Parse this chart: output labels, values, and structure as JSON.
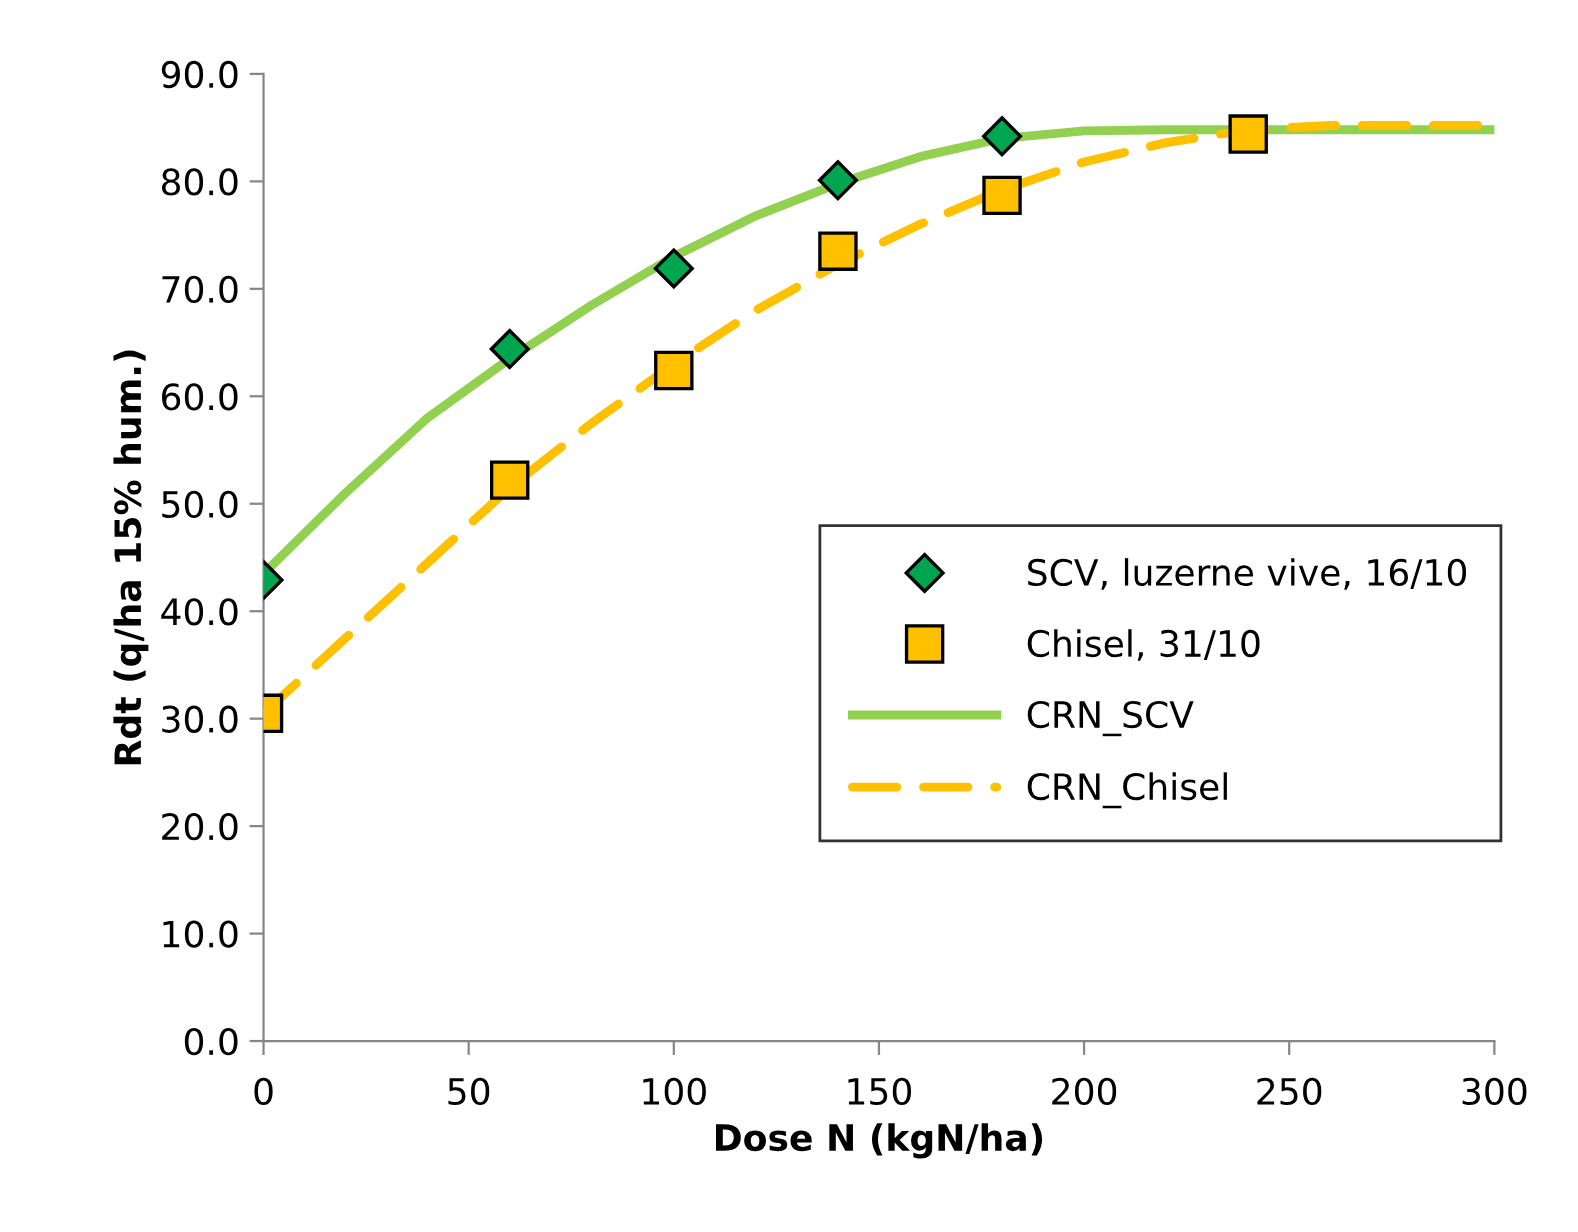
{
  "chart_data": {
    "type": "line",
    "xlabel": "Dose N (kgN/ha)",
    "ylabel": "Rdt (q/ha 15% hum.)",
    "xlim": [
      0,
      300
    ],
    "xticks": [
      0,
      50,
      100,
      150,
      200,
      250,
      300
    ],
    "ylim": [
      0,
      90
    ],
    "yticks": [
      {
        "value": 0,
        "label": "0.0"
      },
      {
        "value": 10,
        "label": "10.0"
      },
      {
        "value": 20,
        "label": "20.0"
      },
      {
        "value": 30,
        "label": "30.0"
      },
      {
        "value": 40,
        "label": "40.0"
      },
      {
        "value": 50,
        "label": "50.0"
      },
      {
        "value": 60,
        "label": "60.0"
      },
      {
        "value": 70,
        "label": "70.0"
      },
      {
        "value": 80,
        "label": "80.0"
      },
      {
        "value": 90,
        "label": "90.0"
      }
    ],
    "grid": false,
    "legend": "right",
    "series": [
      {
        "name": "SCV, luzerne vive, 16/10",
        "type": "scatter",
        "marker": "diamond",
        "color": "#00a550",
        "x": [
          0,
          60,
          100,
          140,
          180
        ],
        "values": [
          42.9,
          64.4,
          71.9,
          80.1,
          84.2
        ]
      },
      {
        "name": "Chisel, 31/10",
        "type": "scatter",
        "marker": "square",
        "color": "#ffc000",
        "x": [
          0,
          60,
          100,
          140,
          180,
          240
        ],
        "values": [
          30.5,
          52.2,
          62.4,
          73.5,
          78.7,
          84.4
        ]
      },
      {
        "name": "CRN_SCV",
        "line_style": "solid",
        "color": "#92d050",
        "x": [
          0,
          20,
          40,
          60,
          80,
          100,
          120,
          140,
          160,
          180,
          200,
          220,
          300
        ],
        "values": [
          43.5,
          51,
          58,
          63.5,
          68.5,
          73,
          76.8,
          79.8,
          82.3,
          84,
          84.7,
          84.8,
          84.8
        ]
      },
      {
        "name": "CRN_Chisel",
        "line_style": "dashed",
        "color": "#ffc000",
        "x": [
          0,
          20,
          40,
          60,
          80,
          100,
          120,
          140,
          160,
          180,
          200,
          220,
          240,
          260,
          300
        ],
        "values": [
          30.5,
          37.5,
          44.5,
          51.5,
          57.5,
          63,
          68,
          72.3,
          76,
          79.2,
          81.8,
          83.6,
          84.8,
          85.2,
          85.2
        ]
      }
    ]
  }
}
